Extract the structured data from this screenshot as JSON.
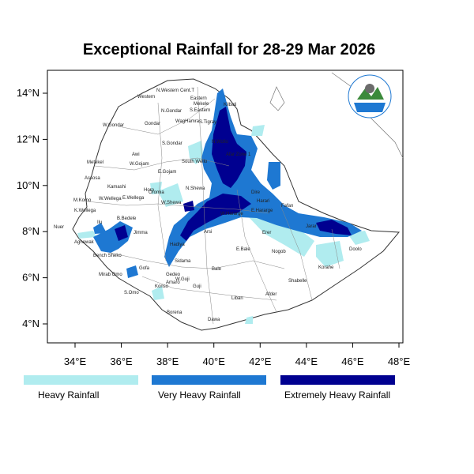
{
  "title": "Exceptional Rainfall for 28-29 Mar 2026",
  "axes": {
    "x_ticks": [
      "34°E",
      "36°E",
      "38°E",
      "40°E",
      "42°E",
      "44°E",
      "46°E",
      "48°E"
    ],
    "y_ticks": [
      "14°N",
      "12°N",
      "10°N",
      "8°N",
      "6°N",
      "4°N"
    ]
  },
  "legend": [
    {
      "label": "Heavy Rainfall",
      "color": "#b0ecef"
    },
    {
      "label": "Very Heavy Rainfall",
      "color": "#1e78d2"
    },
    {
      "label": "Extremely Heavy Rainfall",
      "color": "#000090"
    }
  ],
  "zones": [
    "N.Western",
    "Cent.T",
    "Eastern",
    "Western",
    "Mekele",
    "S.Eastern",
    "Kilbati",
    "N.Gondar",
    "W.Gondar",
    "Gondar",
    "WagHamra",
    "S.Tigray",
    "N.Wollo",
    "S.Gondar",
    "Metekel",
    "Awi",
    "W.Gojam",
    "South Wello",
    "E.Gojam",
    "Afar Zone 1",
    "Assosa",
    "Kamashi",
    "Horo",
    "N.Shewa",
    "Oromia",
    "Dire",
    "Harari",
    "W.Wellega",
    "E.Wellega",
    "M.Komo",
    "K.Wellega",
    "W.Shewa",
    "W.Hararge",
    "Fafan",
    "E.Hararge",
    "Nuer",
    "Ilu",
    "B.Bedele",
    "Jimma",
    "Arsi",
    "Erer",
    "Jarar",
    "Agnewak",
    "Bench Sheko",
    "Hadiya",
    "Sidama",
    "Bale",
    "E.Bale",
    "Nogob",
    "Doolo",
    "Korahe",
    "Mirab Omo",
    "Gofa",
    "S.Omo",
    "Gedeo",
    "Amaro",
    "Konso",
    "Guji",
    "W.Guji",
    "Shabelle",
    "Liban",
    "Afder",
    "Borena",
    "Dawa"
  ]
}
